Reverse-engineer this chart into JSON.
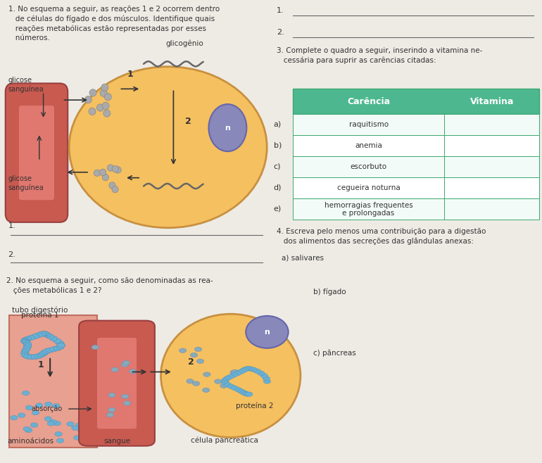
{
  "bg_color": "#eeebe5",
  "q1_text": "1. No esquema a seguir, as reações 1 e 2 ocorrem dentro\n   de células do fígado e dos músculos. Identifique quais\n   reações metabólicas estão representadas por esses\n   números.",
  "q2_text": "2. No esquema a seguir, como são denominadas as rea-\n   ções metabólicas 1 e 2?",
  "q3_text": "3. Complete o quadro a seguir, inserindo a vitamina ne-\n   cessária para suprir as carências citadas:",
  "q4_text": "4. Escreva pelo menos uma contribuição para a digestão\n   dos alimentos das secreções das glândulas anexas:",
  "table_header_color": "#4db890",
  "table_border_color": "#3da870",
  "carencias": [
    "raquitismo",
    "anemia",
    "escorbuto",
    "cegueira noturna",
    "hemorragias frequentes\ne prolongadas"
  ],
  "row_labels": [
    "a)",
    "b)",
    "c)",
    "d)",
    "e)"
  ],
  "vessel_outer": "#c85a50",
  "vessel_inner": "#e07870",
  "cell_fill": "#f5c060",
  "cell_edge": "#c89040",
  "nucleus_fill": "#8888bb",
  "nucleus_edge": "#6666aa",
  "dots_gray": "#aaaaaa",
  "dots_gray_edge": "#888888",
  "dots_blue": "#6ab0d4",
  "dots_blue_edge": "#4a90b4",
  "dots_lightblue": "#88aabb",
  "glycogen_color": "#666666",
  "arrow_color": "#333333",
  "text_color": "#333333",
  "tube_fill": "#e8a090",
  "tube_edge": "#c07060"
}
